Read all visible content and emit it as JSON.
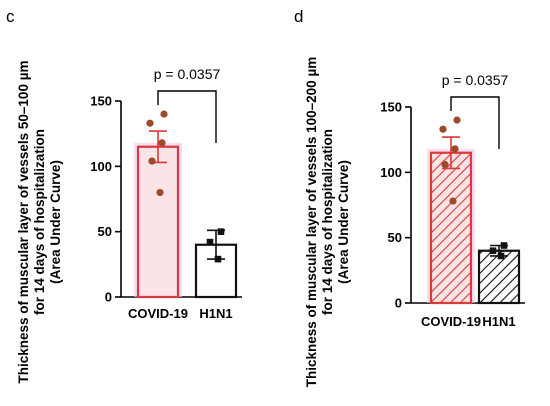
{
  "chart_data": [
    {
      "type": "bar",
      "panel": "c",
      "categories": [
        "COVID-19",
        "H1N1"
      ],
      "values": [
        115,
        40
      ],
      "errors": [
        12,
        11
      ],
      "points": [
        [
          140,
          133,
          118,
          104,
          80
        ],
        [
          50,
          42,
          29
        ]
      ],
      "bar_colors": [
        "#d93a3a",
        "#111111"
      ],
      "hatched": false,
      "ylim": [
        0,
        150
      ],
      "yticks": [
        0,
        50,
        100,
        150
      ],
      "ylabel_lines": [
        "Thickness of muscular layer of vessels 50–100 µm",
        "for 14 days of hospitalization",
        "(Area Under Curve)"
      ],
      "annotation": "p = 0.0357"
    },
    {
      "type": "bar",
      "panel": "d",
      "categories": [
        "COVID-19",
        "H1N1"
      ],
      "values": [
        115,
        40
      ],
      "errors": [
        12,
        4
      ],
      "points": [
        [
          140,
          133,
          118,
          106,
          78
        ],
        [
          44,
          40,
          36
        ]
      ],
      "bar_colors": [
        "#d93a3a",
        "#111111"
      ],
      "hatched": true,
      "ylim": [
        0,
        150
      ],
      "yticks": [
        0,
        50,
        100,
        150
      ],
      "ylabel_lines": [
        "Thickness of muscular layer of  vessels 100–200 µm",
        "for 14 days of hospitalization",
        "(Area Under Curve)"
      ],
      "annotation": "p = 0.0357"
    }
  ]
}
